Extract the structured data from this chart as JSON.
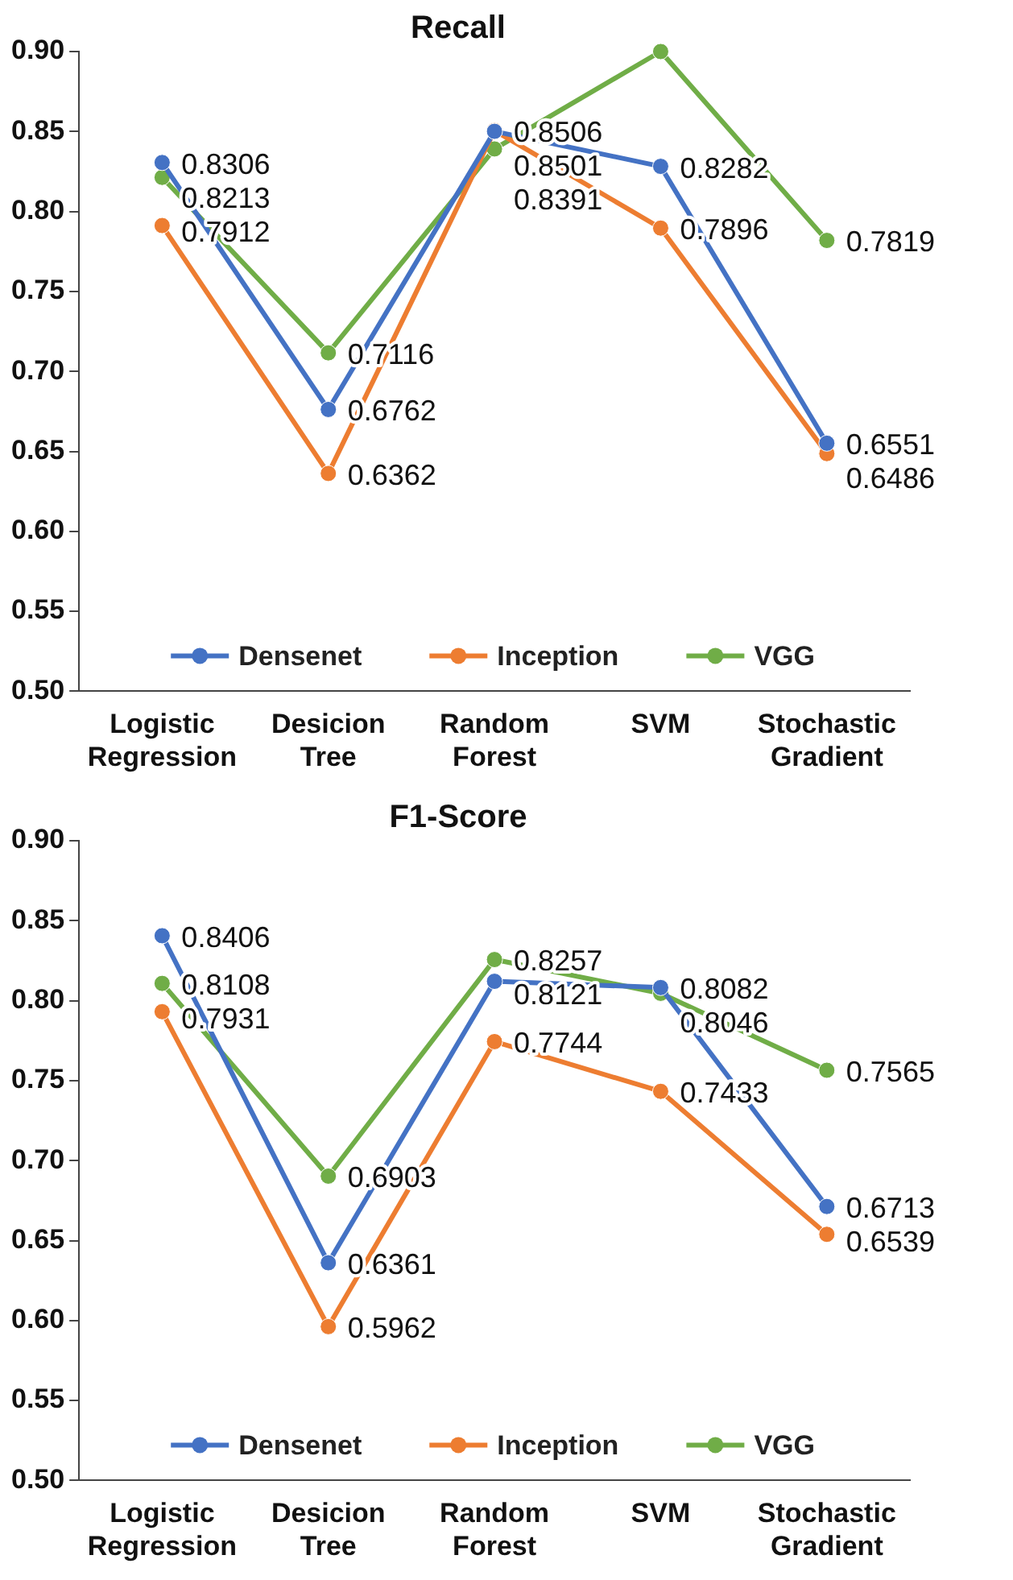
{
  "chart_data": [
    {
      "type": "line",
      "title": "Recall",
      "categories": [
        "Logistic Regression",
        "Desicion Tree",
        "Random Forest",
        "SVM",
        "Stochastic Gradient"
      ],
      "series": [
        {
          "name": "Densenet",
          "color": "#4472c4",
          "values": [
            0.8306,
            0.6762,
            0.8501,
            0.8282,
            0.6551
          ],
          "value_labels": [
            "0.8306",
            "0.6762",
            "0.8501",
            "0.8282",
            "0.6551"
          ]
        },
        {
          "name": "Inception",
          "color": "#ed7d31",
          "values": [
            0.7912,
            0.6362,
            0.8506,
            0.7896,
            0.6486
          ],
          "value_labels": [
            "0.7912",
            "0.6362",
            "0.8506",
            "0.7896",
            "0.6486"
          ]
        },
        {
          "name": "VGG",
          "color": "#70ad47",
          "values": [
            0.8213,
            0.7116,
            0.8391,
            0.9,
            0.7819
          ],
          "value_labels": [
            "0.8213",
            "0.7116",
            "0.8391",
            null,
            "0.7819"
          ]
        }
      ],
      "ylim": [
        0.5,
        0.9
      ],
      "yticks": [
        {
          "value": 0.5,
          "label": "0.50"
        },
        {
          "value": 0.55,
          "label": "0.55"
        },
        {
          "value": 0.6,
          "label": "0.60"
        },
        {
          "value": 0.65,
          "label": "0.65"
        },
        {
          "value": 0.7,
          "label": "0.70"
        },
        {
          "value": 0.75,
          "label": "0.75"
        },
        {
          "value": 0.8,
          "label": "0.80"
        },
        {
          "value": 0.85,
          "label": "0.85"
        },
        {
          "value": 0.9,
          "label": "0.90"
        }
      ],
      "grid": false,
      "legend": "bottom",
      "marker": "circle",
      "line_style": "solid"
    },
    {
      "type": "line",
      "title": "F1-Score",
      "categories": [
        "Logistic Regression",
        "Desicion Tree",
        "Random Forest",
        "SVM",
        "Stochastic Gradient"
      ],
      "series": [
        {
          "name": "Densenet",
          "color": "#4472c4",
          "values": [
            0.8406,
            0.6361,
            0.8121,
            0.8082,
            0.6713
          ],
          "value_labels": [
            "0.8406",
            "0.6361",
            "0.8121",
            "0.8082",
            "0.6713"
          ]
        },
        {
          "name": "Inception",
          "color": "#ed7d31",
          "values": [
            0.7931,
            0.5962,
            0.7744,
            0.7433,
            0.6539
          ],
          "value_labels": [
            "0.7931",
            "0.5962",
            "0.7744",
            "0.7433",
            "0.6539"
          ]
        },
        {
          "name": "VGG",
          "color": "#70ad47",
          "values": [
            0.8108,
            0.6903,
            0.8257,
            0.8046,
            0.7565
          ],
          "value_labels": [
            "0.8108",
            "0.6903",
            "0.8257",
            "0.8046",
            "0.7565"
          ]
        }
      ],
      "ylim": [
        0.5,
        0.9
      ],
      "yticks": [
        {
          "value": 0.5,
          "label": "0.50"
        },
        {
          "value": 0.55,
          "label": "0.55"
        },
        {
          "value": 0.6,
          "label": "0.60"
        },
        {
          "value": 0.65,
          "label": "0.65"
        },
        {
          "value": 0.7,
          "label": "0.70"
        },
        {
          "value": 0.75,
          "label": "0.75"
        },
        {
          "value": 0.8,
          "label": "0.80"
        },
        {
          "value": 0.85,
          "label": "0.85"
        },
        {
          "value": 0.9,
          "label": "0.90"
        }
      ],
      "grid": false,
      "legend": "bottom",
      "marker": "circle",
      "line_style": "solid"
    }
  ]
}
